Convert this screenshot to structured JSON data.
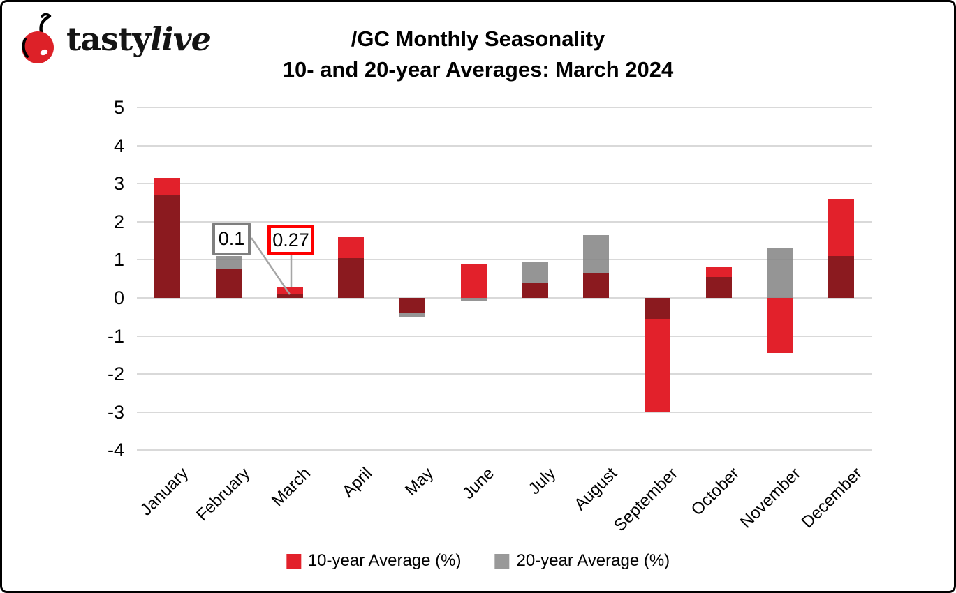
{
  "logo": {
    "brand_tasty": "tasty",
    "brand_live": "live"
  },
  "title": {
    "line1": "/GC Monthly Seasonality",
    "line2": "10- and 20-year Averages: March 2024"
  },
  "colors": {
    "ten_year_red": "#E2212B",
    "overlap_dark_red": "#8B1A1F",
    "twenty_year_gray": "#999999",
    "gridline_gray": "#D9D9D9",
    "leader_line_gray": "#A6A6A6",
    "callout_gray_border": "#7F7F7F",
    "callout_red_border": "#FE0000",
    "cherry_red": "#DD2128"
  },
  "chart_data": {
    "type": "bar",
    "title": "/GC Monthly Seasonality 10- and 20-year Averages: March 2024",
    "categories": [
      "January",
      "February",
      "March",
      "April",
      "May",
      "June",
      "July",
      "August",
      "September",
      "October",
      "November",
      "December"
    ],
    "series": [
      {
        "name": "10-year Average (%)",
        "color": "#E2212B",
        "values": [
          3.15,
          0.75,
          0.27,
          1.6,
          -0.4,
          0.9,
          0.4,
          0.65,
          -3.0,
          0.8,
          -1.45,
          2.6
        ]
      },
      {
        "name": "20-year Average (%)",
        "color": "#999999",
        "values": [
          2.7,
          1.1,
          0.1,
          1.05,
          -0.5,
          -0.1,
          0.95,
          1.65,
          -0.55,
          0.55,
          1.3,
          1.1
        ]
      }
    ],
    "overlap_note": "Bars overlap; overlapping region renders dark red",
    "xlabel": "",
    "ylabel": "",
    "ylim": [
      -4,
      5
    ],
    "yticks": [
      5,
      4,
      3,
      2,
      1,
      0,
      -1,
      -2,
      -3,
      -4
    ],
    "grid": "horizontal",
    "legend_position": "bottom",
    "annotations": [
      {
        "text": "0.1",
        "month": "March",
        "series": "20-year Average (%)"
      },
      {
        "text": "0.27",
        "month": "March",
        "series": "10-year Average (%)"
      }
    ]
  },
  "legend": {
    "items": [
      {
        "label": "10-year Average (%)",
        "color": "#E2212B"
      },
      {
        "label": "20-year Average (%)",
        "color": "#999999"
      }
    ]
  }
}
